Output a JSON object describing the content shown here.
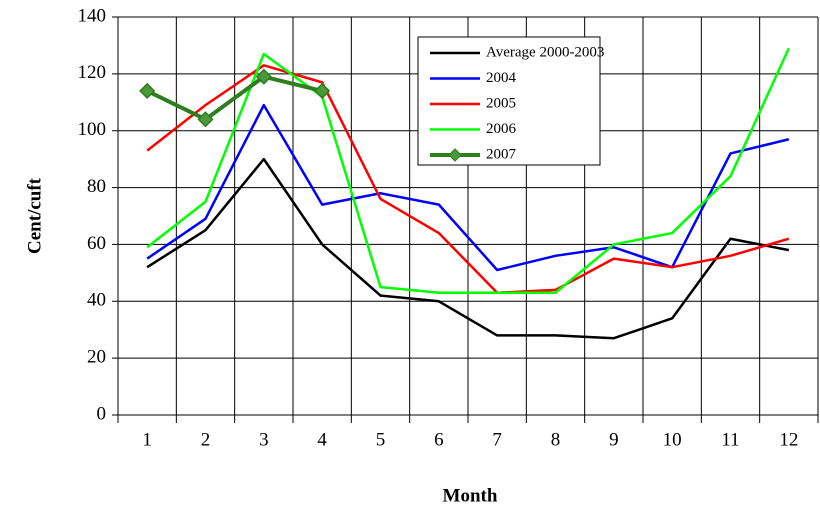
{
  "chart_data": {
    "type": "line",
    "x_label": "Month",
    "y_label": "Cent/cuft",
    "categories": [
      "1",
      "2",
      "3",
      "4",
      "5",
      "6",
      "7",
      "8",
      "9",
      "10",
      "11",
      "12"
    ],
    "ylim": [
      0,
      140
    ],
    "yticks": [
      0,
      20,
      40,
      60,
      80,
      100,
      120,
      140
    ],
    "grid": true,
    "legend": "top-right",
    "series": [
      {
        "name": "Average 2000-2003",
        "color": "#000000",
        "values": [
          52,
          65,
          90,
          60,
          42,
          40,
          28,
          28,
          27,
          34,
          62,
          58
        ]
      },
      {
        "name": "2004",
        "color": "#0000ff",
        "values": [
          55,
          69,
          109,
          74,
          78,
          74,
          51,
          56,
          59,
          52,
          92,
          97
        ]
      },
      {
        "name": "2005",
        "color": "#ff0000",
        "values": [
          93,
          109,
          123,
          117,
          76,
          64,
          43,
          44,
          55,
          52,
          56,
          62
        ]
      },
      {
        "name": "2006",
        "color": "#00ff00",
        "values": [
          59,
          75,
          127,
          112,
          45,
          43,
          43,
          43,
          60,
          64,
          84,
          129
        ]
      },
      {
        "name": "2007",
        "color": "#2e7d1e",
        "marker": "diamond",
        "values": [
          114,
          104,
          119,
          114,
          null,
          null,
          null,
          null,
          null,
          null,
          null,
          null
        ]
      }
    ]
  }
}
